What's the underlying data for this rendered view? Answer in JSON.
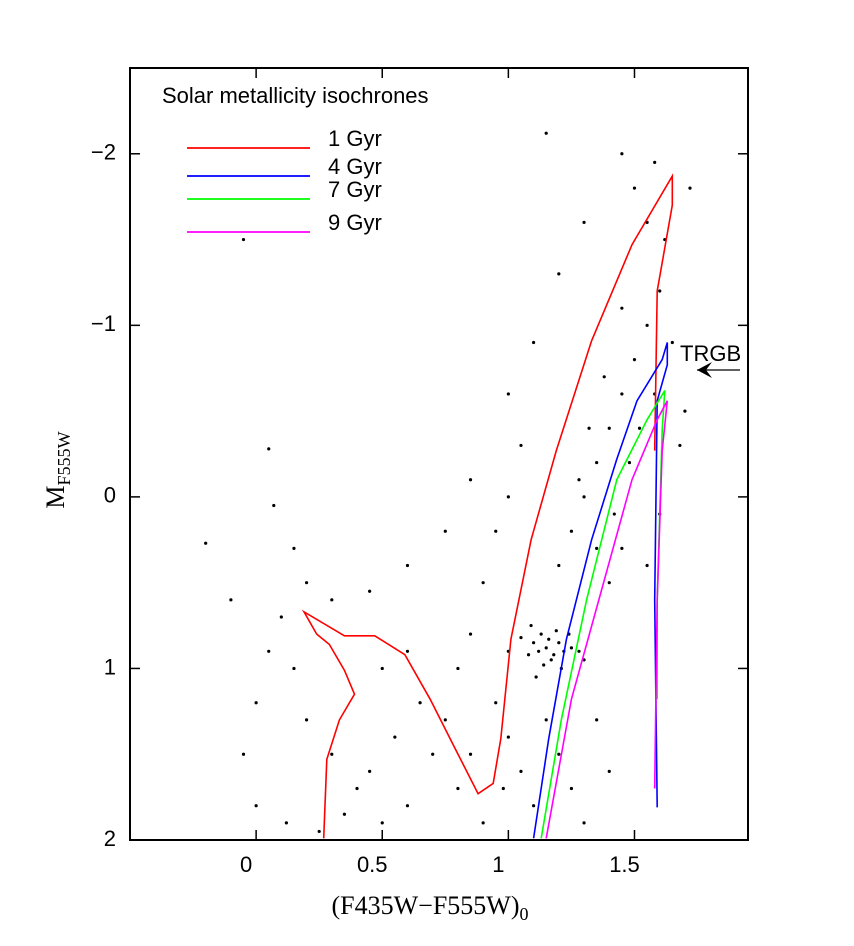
{
  "chart_data": {
    "type": "scatter",
    "legend_title": "Solar metallicity isochrones",
    "xlabel": "(F435W−F555W)",
    "xlabel_sub": "0",
    "ylabel": "M",
    "ylabel_sub": "F555W",
    "xlim": [
      -0.5,
      1.95
    ],
    "ylim": [
      2,
      -2.5
    ],
    "xticks": [
      0,
      0.5,
      1,
      1.5
    ],
    "yticks": [
      {
        "value": -2,
        "label": "−2"
      },
      {
        "value": -1,
        "label": "−1"
      },
      0,
      1,
      2
    ],
    "point_color": "#000000",
    "legend": "upper left",
    "points": {
      "x": [
        1.1,
        1.12,
        1.15,
        1.18,
        1.2,
        1.13,
        1.17,
        1.22,
        1.08,
        1.16,
        1.25,
        1.19,
        1.14,
        1.21,
        1.05,
        1.28,
        1.11,
        1.24,
        1.09,
        1.3,
        1.2,
        1.25,
        1.3,
        1.35,
        1.4,
        1.45,
        1.5,
        1.55,
        1.6,
        1.62,
        1.55,
        1.45,
        1.38,
        1.32,
        1.28,
        1.42,
        1.48,
        1.52,
        1.58,
        1.65,
        1.7,
        1.68,
        1.72,
        1.5,
        1.58,
        1.35,
        1.4,
        1.45,
        1.6,
        1.55,
        0.9,
        0.95,
        1.0,
        1.05,
        0.85,
        0.8,
        0.95,
        1.0,
        1.05,
        1.1,
        0.9,
        0.8,
        0.7,
        0.6,
        0.5,
        0.4,
        0.3,
        0.2,
        0.15,
        0.1,
        0.05,
        0.0,
        -0.05,
        0.0,
        0.12,
        0.25,
        0.35,
        0.45,
        0.55,
        0.65,
        0.75,
        0.85,
        0.98,
        1.2,
        1.25,
        1.3,
        1.35,
        1.4,
        1.15,
        1.0,
        -0.2,
        0.05,
        0.07,
        -0.1,
        0.15,
        0.3,
        0.45,
        0.6,
        0.75,
        0.85,
        1.0,
        1.1,
        1.2,
        1.3,
        1.15,
        1.45,
        -0.05,
        0.2,
        0.5,
        0.6
      ],
      "y": [
        0.85,
        0.9,
        0.88,
        0.92,
        0.85,
        0.8,
        0.95,
        0.9,
        0.92,
        0.83,
        0.88,
        0.78,
        0.98,
        1.0,
        0.82,
        0.9,
        1.05,
        0.8,
        0.75,
        0.95,
        0.4,
        0.2,
        0.0,
        -0.2,
        -0.4,
        -0.6,
        -0.8,
        -1.0,
        -1.2,
        -1.5,
        -1.6,
        -1.1,
        -0.7,
        -0.4,
        -0.1,
        0.1,
        -0.2,
        -0.4,
        -0.6,
        -0.9,
        -0.5,
        -0.3,
        -1.8,
        -1.8,
        -1.95,
        0.3,
        0.5,
        0.3,
        0.1,
        0.4,
        0.5,
        0.2,
        0.0,
        -0.3,
        0.8,
        1.0,
        1.2,
        1.4,
        1.6,
        1.8,
        1.9,
        1.7,
        1.5,
        1.8,
        1.9,
        1.7,
        1.5,
        1.3,
        1.0,
        0.7,
        0.9,
        1.2,
        1.5,
        1.8,
        1.9,
        1.95,
        1.85,
        1.6,
        1.4,
        1.2,
        1.3,
        1.5,
        1.7,
        1.5,
        1.7,
        1.9,
        1.3,
        1.6,
        1.3,
        0.9,
        0.27,
        -0.28,
        0.05,
        0.6,
        0.3,
        0.6,
        0.55,
        0.4,
        0.2,
        -0.1,
        -0.6,
        -0.9,
        -1.3,
        -1.6,
        -2.12,
        -2.0,
        -1.5,
        0.5,
        1.0,
        0.9
      ]
    },
    "series": [
      {
        "name": "1 Gyr",
        "color": "#ff0000",
        "x": [
          0.268,
          0.28,
          0.33,
          0.39,
          0.35,
          0.29,
          0.24,
          0.19,
          0.35,
          0.47,
          0.59,
          0.69,
          0.79,
          0.88,
          0.94,
          0.97,
          1.01,
          1.09,
          1.19,
          1.33,
          1.49,
          1.65,
          1.65,
          1.59,
          1.58
        ],
        "values": [
          1.99,
          1.53,
          1.3,
          1.15,
          1.01,
          0.86,
          0.8,
          0.67,
          0.81,
          0.81,
          0.92,
          1.18,
          1.47,
          1.73,
          1.67,
          1.41,
          0.83,
          0.25,
          -0.27,
          -0.91,
          -1.47,
          -1.87,
          -1.7,
          -1.2,
          -0.27
        ]
      },
      {
        "name": "4 Gyr",
        "color": "#0000ff",
        "x": [
          1.1,
          1.16,
          1.23,
          1.33,
          1.43,
          1.51,
          1.61,
          1.63,
          1.63,
          1.59,
          1.58,
          1.59
        ],
        "values": [
          1.99,
          1.41,
          0.83,
          0.25,
          -0.22,
          -0.56,
          -0.8,
          -0.9,
          -0.77,
          -0.56,
          0.6,
          1.81
        ]
      },
      {
        "name": "7 Gyr",
        "color": "#00ff00",
        "x": [
          1.13,
          1.21,
          1.31,
          1.43,
          1.55,
          1.62,
          1.61,
          1.59,
          1.59
        ],
        "values": [
          1.99,
          1.3,
          0.6,
          -0.1,
          -0.45,
          -0.62,
          -0.39,
          0.6,
          1.18
        ]
      },
      {
        "name": "9 Gyr",
        "color": "#ff00ff",
        "x": [
          1.15,
          1.25,
          1.37,
          1.49,
          1.59,
          1.63,
          1.61,
          1.59,
          1.58
        ],
        "values": [
          1.99,
          1.18,
          0.54,
          -0.1,
          -0.45,
          -0.56,
          -0.27,
          0.6,
          1.7
        ]
      }
    ],
    "annotation": "TRGB"
  }
}
